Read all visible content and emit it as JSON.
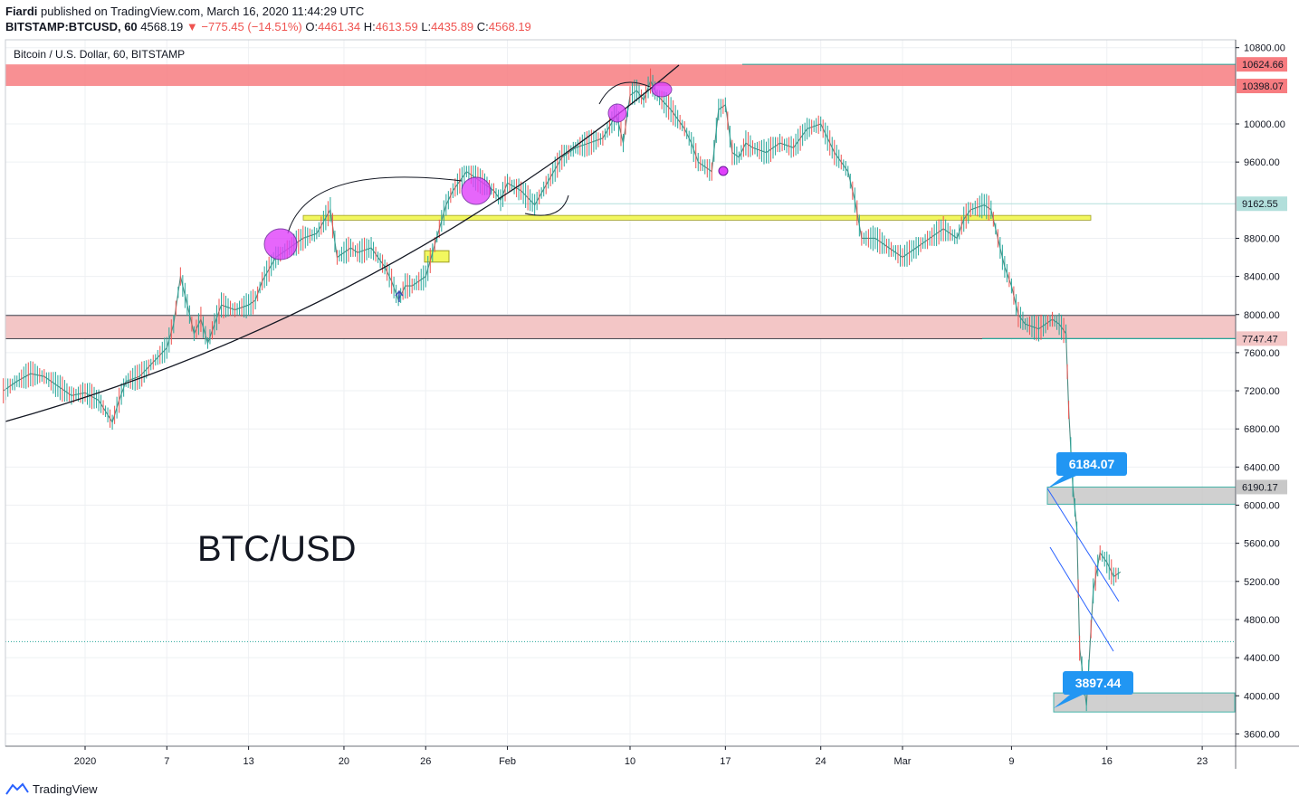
{
  "header": {
    "author": "Fiardi",
    "published_text": "published on TradingView.com, March 16, 2020 11:44:29 UTC",
    "symbol": "BITSTAMP:BTCUSD, 60",
    "last": "4568.19",
    "arrow": "▼",
    "change": "−775.45 (−14.51%)",
    "o_label": "O:",
    "o_value": "4461.34",
    "h_label": "H:",
    "h_value": "4613.59",
    "l_label": "L:",
    "l_value": "4435.89",
    "c_label": "C:",
    "c_value": "4568.19"
  },
  "chart_title": "Bitcoin / U.S. Dollar, 60, BITSTAMP",
  "watermark": "BTC/USD",
  "footer": {
    "brand": "TradingView"
  },
  "colors": {
    "up": "#26a69a",
    "down": "#ef5350",
    "resistance_zone": "#f77c80",
    "support_zone": "#f3c6c6",
    "yellow_zone": "#f2f75f",
    "gray_zone": "#c8c8c8",
    "circles": "#e040fb",
    "channel": "#2962ff",
    "callout": "#2196f3"
  },
  "chart_data": {
    "type": "line",
    "title": "Bitcoin / U.S. Dollar, 60, BITSTAMP",
    "xlabel": "",
    "ylabel": "",
    "y_ticks": [
      10800,
      10000,
      9600,
      8800,
      8400,
      8000,
      7600,
      7200,
      6800,
      6400,
      6000,
      5600,
      5200,
      4800,
      4400,
      4000,
      3600
    ],
    "x_ticks": [
      {
        "label": "2020",
        "day": 0
      },
      {
        "label": "7",
        "day": 6
      },
      {
        "label": "13",
        "day": 12
      },
      {
        "label": "20",
        "day": 19
      },
      {
        "label": "26",
        "day": 25
      },
      {
        "label": "Feb",
        "day": 31
      },
      {
        "label": "10",
        "day": 40
      },
      {
        "label": "17",
        "day": 47
      },
      {
        "label": "24",
        "day": 54
      },
      {
        "label": "Mar",
        "day": 60
      },
      {
        "label": "9",
        "day": 68
      },
      {
        "label": "16",
        "day": 75
      },
      {
        "label": "23",
        "day": 82
      }
    ],
    "ylim": [
      3500,
      10900
    ],
    "price_labels": [
      {
        "value": "10624.66",
        "price": 10624.66,
        "color": "#f77c80"
      },
      {
        "value": "10398.07",
        "price": 10398.07,
        "color": "#f77c80"
      },
      {
        "value": "9162.55",
        "price": 9162.55,
        "color": "#b2dfdb"
      },
      {
        "value": "7747.47",
        "price": 7747.47,
        "color": "#f3c6c6"
      },
      {
        "value": "6190.17",
        "price": 6190.17,
        "color": "#c8c8c8"
      }
    ],
    "callouts": [
      {
        "text": "6184.07",
        "price": 6184.07
      },
      {
        "text": "3897.44",
        "price": 3897.44
      }
    ],
    "last_price": 4568.19,
    "series": [
      {
        "values_x_day": [
          -6,
          -5,
          -4,
          -3,
          -2,
          -1,
          0,
          1,
          2,
          2.5,
          3,
          4,
          5,
          6,
          6.5,
          7,
          7.5,
          8,
          8.5,
          9,
          10,
          11,
          12,
          12.5,
          13,
          14,
          15,
          16,
          17,
          18,
          18.5,
          19,
          19.5,
          20,
          21,
          22,
          22.5,
          23,
          23.5,
          24,
          25,
          25.5,
          26,
          26.5,
          27,
          27.5,
          28,
          29,
          30,
          30.5,
          31,
          32,
          33,
          34,
          35,
          36,
          37,
          38,
          39,
          39.5,
          40,
          40.5,
          41,
          41.5,
          42,
          43,
          44,
          44.5,
          45,
          46,
          46.5,
          47,
          47.5,
          48,
          48.5,
          49,
          50,
          51,
          52,
          53,
          54,
          55,
          56,
          56.5,
          57,
          58,
          59,
          60,
          61,
          62,
          63,
          64,
          64.5,
          65,
          66,
          66.5,
          67,
          67.5,
          68,
          68.5,
          69,
          70,
          71,
          71.5,
          72,
          72.2,
          72.5,
          72.8,
          73,
          73.5,
          74,
          74.5,
          75,
          75.5,
          76
        ],
        "values_price": [
          7200,
          7300,
          7380,
          7350,
          7250,
          7150,
          7180,
          7100,
          6870,
          7100,
          7300,
          7350,
          7500,
          7650,
          7900,
          8400,
          8100,
          7800,
          7950,
          7700,
          8100,
          8050,
          8100,
          8150,
          8350,
          8600,
          8700,
          8800,
          8850,
          9100,
          8600,
          8650,
          8700,
          8650,
          8700,
          8500,
          8350,
          8150,
          8300,
          8300,
          8400,
          8650,
          8900,
          9150,
          9300,
          9400,
          9500,
          9400,
          9300,
          9200,
          9380,
          9300,
          9150,
          9400,
          9650,
          9750,
          9800,
          9850,
          10100,
          9800,
          10300,
          10350,
          10250,
          10450,
          10300,
          10150,
          9950,
          9800,
          9600,
          9500,
          10150,
          10200,
          9700,
          9650,
          9800,
          9750,
          9700,
          9800,
          9750,
          9950,
          10000,
          9700,
          9500,
          9200,
          8800,
          8800,
          8700,
          8600,
          8700,
          8800,
          8900,
          8800,
          9000,
          9100,
          9150,
          9100,
          8800,
          8500,
          8300,
          8000,
          7900,
          7850,
          7950,
          7900,
          7800,
          7000,
          6200,
          5750,
          4500,
          3900,
          5100,
          5500,
          5400,
          5250,
          5300,
          5200,
          4600
        ]
      }
    ]
  }
}
